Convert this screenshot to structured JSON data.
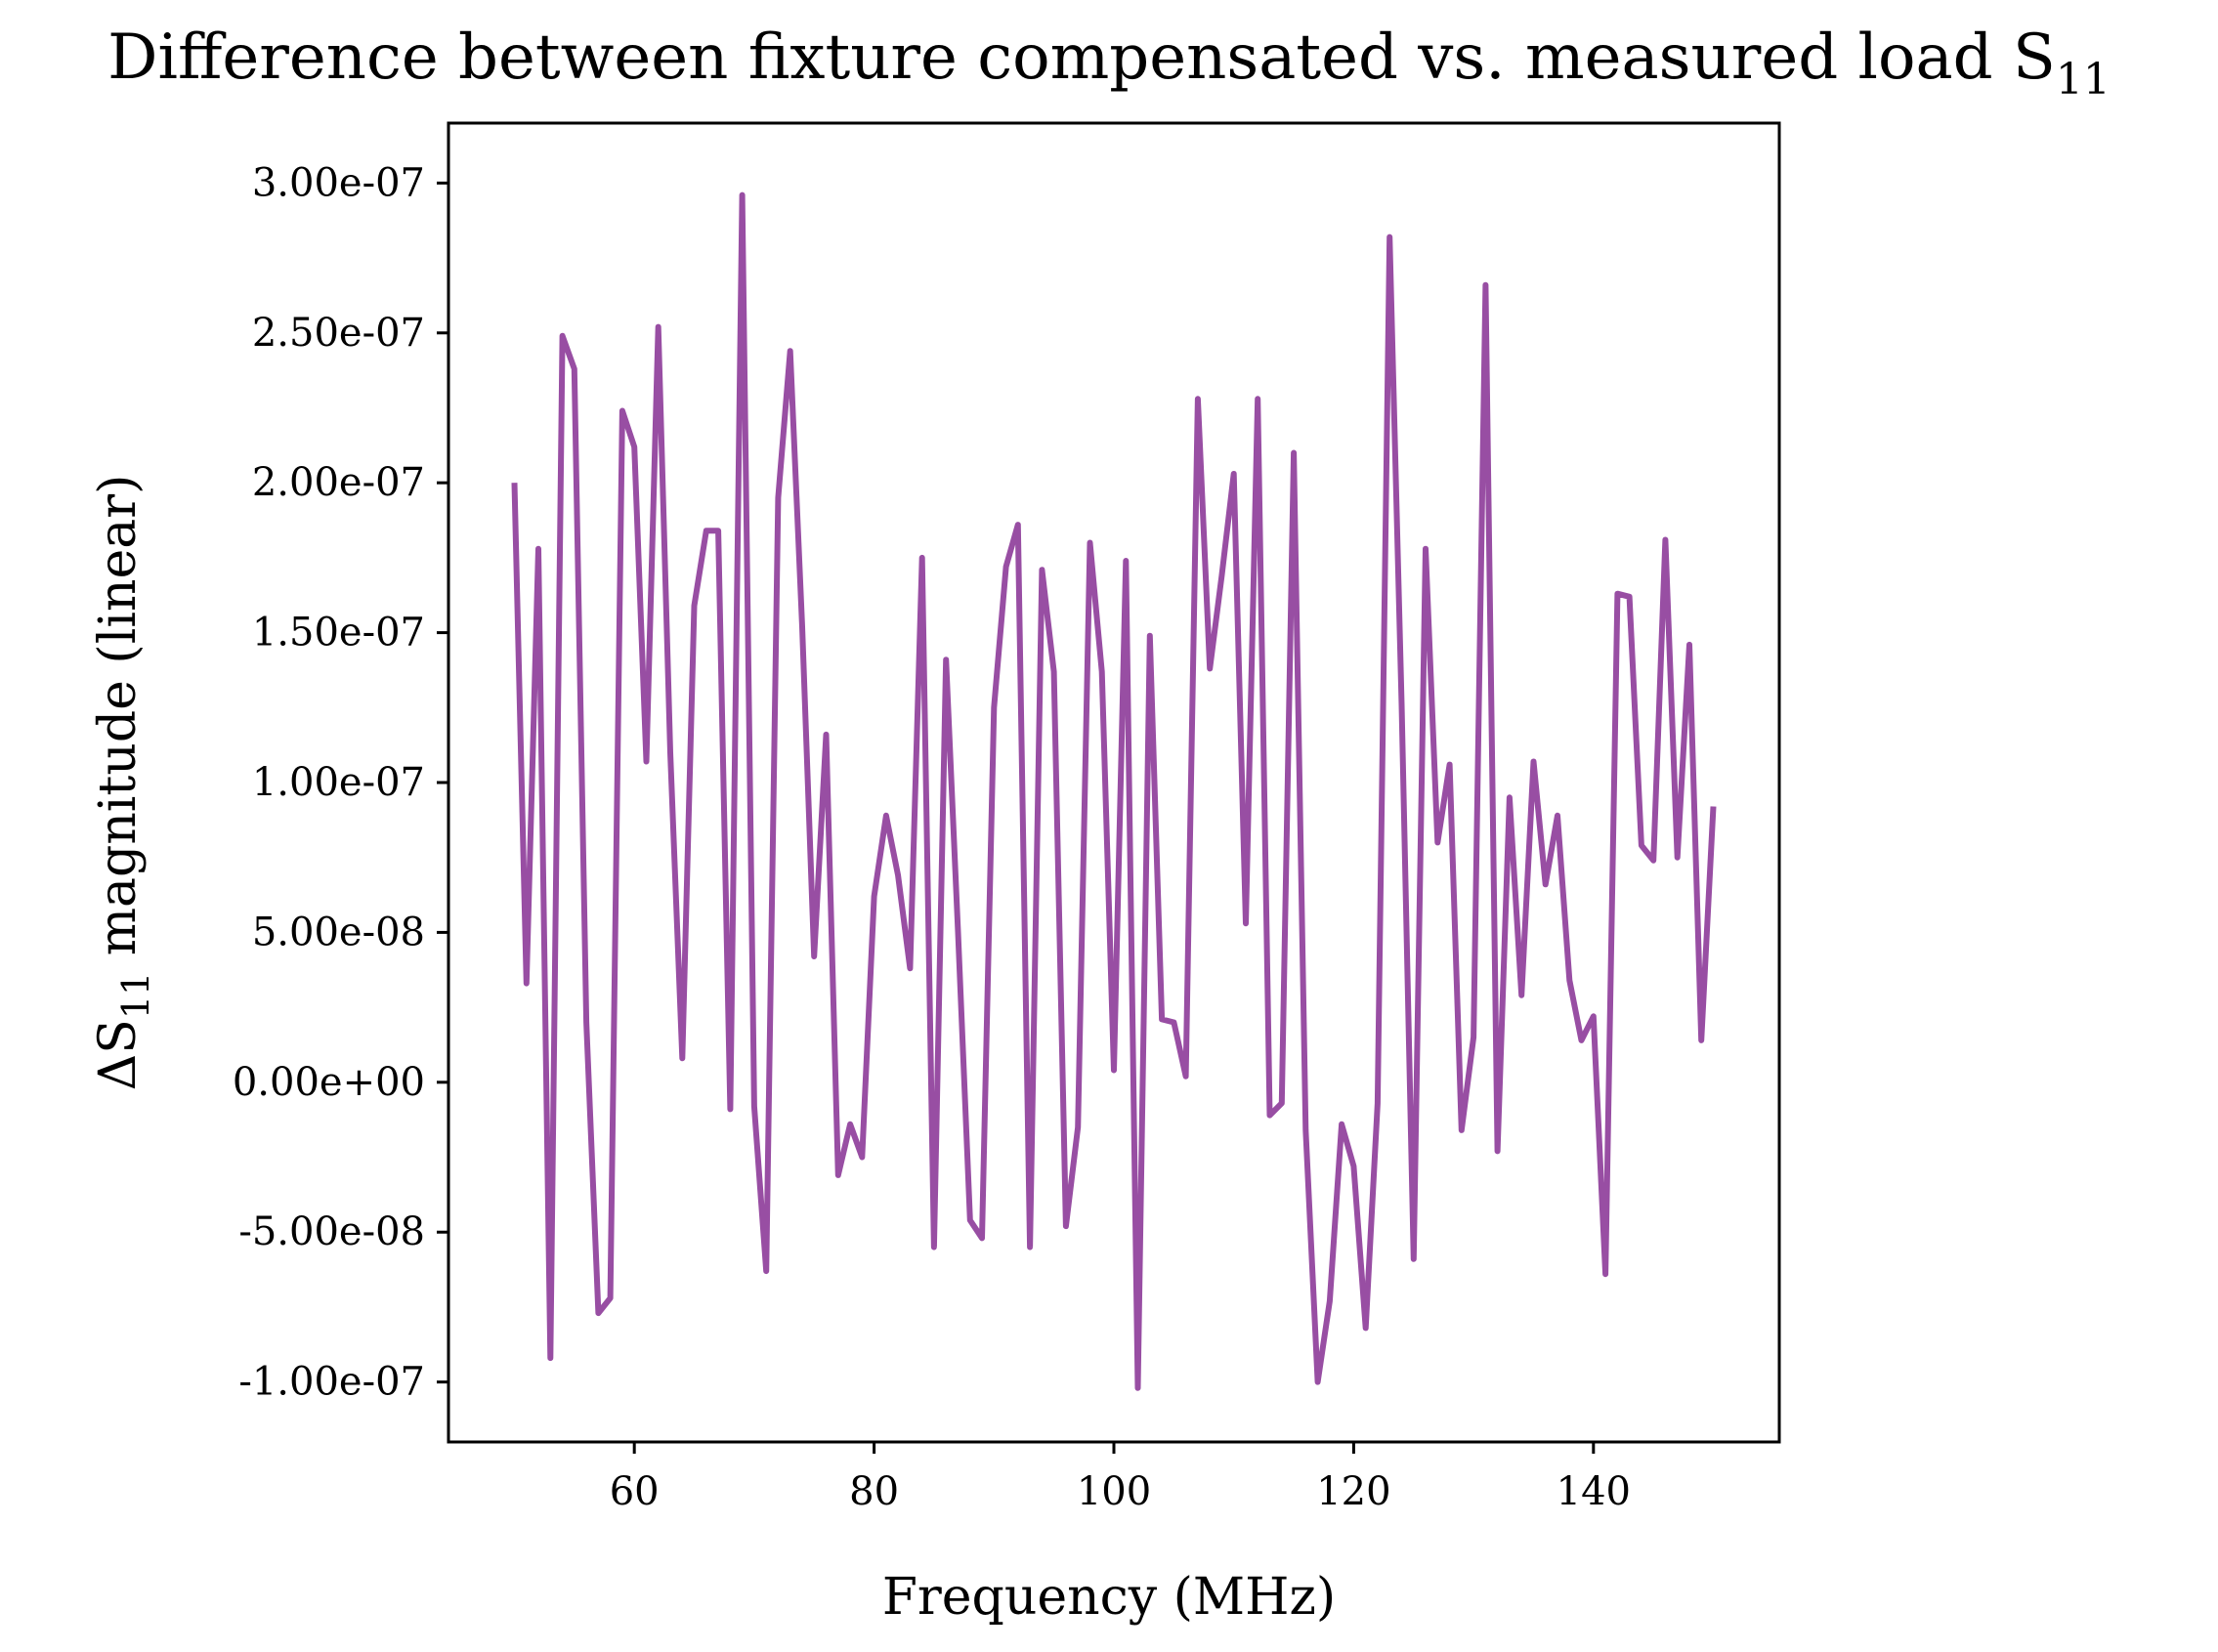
{
  "chart_data": {
    "type": "line",
    "title": "Difference between fixture compensated vs. measured load S",
    "title_subscript": "11",
    "xlabel": "Frequency (MHz)",
    "ylabel": "ΔS",
    "ylabel_subscript": "11",
    "ylabel_suffix": " magnitude (linear)",
    "xlim": [
      44.5,
      155.5
    ],
    "ylim": [
      -1.2e-07,
      3.2e-07
    ],
    "xticks": [
      60,
      80,
      100,
      120,
      140
    ],
    "xtick_labels": [
      "60",
      "80",
      "100",
      "120",
      "140"
    ],
    "yticks": [
      -1e-07,
      -5e-08,
      0,
      5e-08,
      1e-07,
      1.5e-07,
      2e-07,
      2.5e-07,
      3e-07
    ],
    "ytick_labels": [
      "-1.00e-07",
      "-5.00e-08",
      "0.00e+00",
      "5.00e-08",
      "1.00e-07",
      "1.50e-07",
      "2.00e-07",
      "2.50e-07",
      "3.00e-07"
    ],
    "grid": false,
    "series": [
      {
        "color": "#984ea3",
        "x": [
          50,
          51,
          52,
          53,
          54,
          55,
          56,
          57,
          58,
          59,
          60,
          61,
          62,
          63,
          64,
          65,
          66,
          67,
          68,
          69,
          70,
          71,
          72,
          73,
          74,
          75,
          76,
          77,
          78,
          79,
          80,
          81,
          82,
          83,
          84,
          85,
          86,
          87,
          88,
          89,
          90,
          91,
          92,
          93,
          94,
          95,
          96,
          97,
          98,
          99,
          100,
          101,
          102,
          103,
          104,
          105,
          106,
          107,
          108,
          109,
          110,
          111,
          112,
          113,
          114,
          115,
          116,
          117,
          118,
          119,
          120,
          121,
          122,
          123,
          124,
          125,
          126,
          127,
          128,
          129,
          130,
          131,
          132,
          133,
          134,
          135,
          136,
          137,
          138,
          139,
          140,
          141,
          142,
          143,
          144,
          145,
          146,
          147,
          148,
          149,
          150
        ],
        "y": [
          2e-07,
          3.3e-08,
          1.78e-07,
          -9.2e-08,
          2.49e-07,
          2.38e-07,
          2e-08,
          -7.7e-08,
          -7.2e-08,
          2.24e-07,
          2.12e-07,
          1.07e-07,
          2.52e-07,
          1.1e-07,
          8e-09,
          1.59e-07,
          1.84e-07,
          1.84e-07,
          -9e-09,
          2.96e-07,
          -8e-09,
          -6.3e-08,
          1.95e-07,
          2.44e-07,
          1.52e-07,
          4.2e-08,
          1.16e-07,
          -3.1e-08,
          -1.4e-08,
          -2.5e-08,
          6.2e-08,
          8.9e-08,
          6.9e-08,
          3.8e-08,
          1.75e-07,
          -5.5e-08,
          1.41e-07,
          5e-08,
          -4.6e-08,
          -5.2e-08,
          1.25e-07,
          1.72e-07,
          1.86e-07,
          -5.5e-08,
          1.71e-07,
          1.37e-07,
          -4.8e-08,
          -1.5e-08,
          1.8e-07,
          1.37e-07,
          4e-09,
          1.74e-07,
          -1.02e-07,
          1.49e-07,
          2.1e-08,
          2e-08,
          2e-09,
          2.28e-07,
          1.38e-07,
          1.69e-07,
          2.03e-07,
          5.3e-08,
          2.28e-07,
          -1.1e-08,
          -7e-09,
          2.1e-07,
          -1.6e-08,
          -1e-07,
          -7.3e-08,
          -1.4e-08,
          -2.8e-08,
          -8.2e-08,
          -7e-09,
          2.82e-07,
          1.26e-07,
          -5.9e-08,
          1.78e-07,
          8e-08,
          1.06e-07,
          -1.6e-08,
          1.5e-08,
          2.66e-07,
          -2.3e-08,
          9.5e-08,
          2.9e-08,
          1.07e-07,
          6.6e-08,
          8.9e-08,
          3.4e-08,
          1.4e-08,
          2.2e-08,
          -6.4e-08,
          1.63e-07,
          1.62e-07,
          7.9e-08,
          7.4e-08,
          1.81e-07,
          7.5e-08,
          1.46e-07,
          1.4e-08,
          9.2e-08
        ]
      }
    ]
  }
}
